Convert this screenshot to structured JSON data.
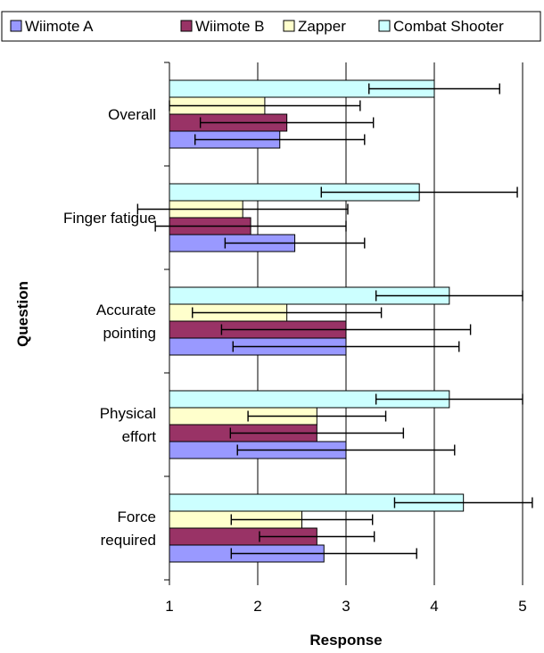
{
  "chart_data": {
    "type": "bar",
    "orientation": "horizontal",
    "title": "",
    "xlabel": "Response",
    "ylabel": "Question",
    "xlim": [
      1,
      5
    ],
    "xticks": [
      "1",
      "2",
      "3",
      "4",
      "5"
    ],
    "grid": "vertical",
    "legend_position": "top",
    "categories": [
      {
        "lines": [
          "Overall"
        ]
      },
      {
        "lines": [
          "Finger fatigue"
        ]
      },
      {
        "lines": [
          "Accurate",
          "pointing"
        ]
      },
      {
        "lines": [
          "Physical",
          "effort"
        ]
      },
      {
        "lines": [
          "Force",
          "required"
        ]
      }
    ],
    "series": [
      {
        "name": "Wiimote A",
        "color": "#9999ff",
        "values": [
          2.25,
          2.42,
          3.0,
          3.0,
          2.75
        ],
        "errors": [
          0.96,
          0.79,
          1.28,
          1.23,
          1.05
        ]
      },
      {
        "name": "Wiimote B",
        "color": "#993366",
        "values": [
          2.33,
          1.92,
          3.0,
          2.67,
          2.67
        ],
        "errors": [
          0.98,
          1.08,
          1.41,
          0.98,
          0.65
        ]
      },
      {
        "name": "Zapper",
        "color": "#ffffcc",
        "values": [
          2.08,
          1.83,
          2.33,
          2.67,
          2.5
        ],
        "errors": [
          1.08,
          1.19,
          1.07,
          0.78,
          0.8
        ]
      },
      {
        "name": "Combat Shooter",
        "color": "#ccffff",
        "values": [
          4.0,
          3.83,
          4.17,
          4.17,
          4.33
        ],
        "errors": [
          0.74,
          1.11,
          0.83,
          0.83,
          0.78
        ]
      }
    ]
  }
}
